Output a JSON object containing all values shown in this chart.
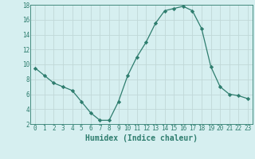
{
  "x": [
    0,
    1,
    2,
    3,
    4,
    5,
    6,
    7,
    8,
    9,
    10,
    11,
    12,
    13,
    14,
    15,
    16,
    17,
    18,
    19,
    20,
    21,
    22,
    23
  ],
  "y": [
    9.5,
    8.5,
    7.5,
    7.0,
    6.5,
    5.0,
    3.5,
    2.5,
    2.5,
    5.0,
    8.5,
    11.0,
    13.0,
    15.5,
    17.2,
    17.5,
    17.8,
    17.2,
    14.8,
    9.7,
    7.0,
    6.0,
    5.8,
    5.4
  ],
  "line_color": "#2e7d6e",
  "marker": "D",
  "marker_size": 2.2,
  "background_color": "#d6eff0",
  "grid_color": "#c0d8d8",
  "xlabel": "Humidex (Indice chaleur)",
  "ylim": [
    2,
    18
  ],
  "xlim_min": -0.5,
  "xlim_max": 23.5,
  "yticks": [
    2,
    4,
    6,
    8,
    10,
    12,
    14,
    16,
    18
  ],
  "xticks": [
    0,
    1,
    2,
    3,
    4,
    5,
    6,
    7,
    8,
    9,
    10,
    11,
    12,
    13,
    14,
    15,
    16,
    17,
    18,
    19,
    20,
    21,
    22,
    23
  ],
  "tick_fontsize": 5.5,
  "xlabel_fontsize": 7.0
}
